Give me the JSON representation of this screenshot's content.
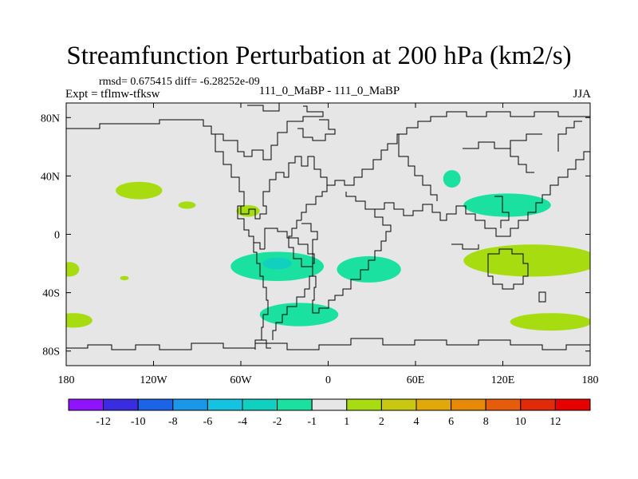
{
  "chart_data": {
    "type": "heatmap",
    "title": "Streamfunction Perturbation at 200 hPa (km2/s)",
    "stats_label": "rmsd= 0.675415 diff= -6.28252e-09",
    "experiment_label": "Expt = tflmw-tfksw",
    "comparison_label": "111_0_MaBP - 111_0_MaBP",
    "season_label": "JJA",
    "x_range": [
      -180,
      180
    ],
    "y_range": [
      -90,
      90
    ],
    "x_ticks": [
      {
        "value": -180,
        "label": "180"
      },
      {
        "value": -120,
        "label": "120W"
      },
      {
        "value": -60,
        "label": "60W"
      },
      {
        "value": 0,
        "label": "0"
      },
      {
        "value": 60,
        "label": "60E"
      },
      {
        "value": 120,
        "label": "120E"
      },
      {
        "value": 180,
        "label": "180"
      }
    ],
    "y_ticks": [
      {
        "value": 80,
        "label": "80N"
      },
      {
        "value": 40,
        "label": "40N"
      },
      {
        "value": 0,
        "label": "0"
      },
      {
        "value": -40,
        "label": "40S"
      },
      {
        "value": -80,
        "label": "80S"
      }
    ],
    "background_color": "#e6e6e6",
    "levels": [
      {
        "label": "-12",
        "color": "#9013fe"
      },
      {
        "label": "-10",
        "color": "#3a2ce0"
      },
      {
        "label": "-8",
        "color": "#1c63e6"
      },
      {
        "label": "-6",
        "color": "#1a97e8"
      },
      {
        "label": "-4",
        "color": "#14c3e0"
      },
      {
        "label": "-2",
        "color": "#10d0c0"
      },
      {
        "label": "-1",
        "color": "#1ae0a0"
      },
      {
        "label": "1",
        "color": "#e6e6e6"
      },
      {
        "label": "2",
        "color": "#a6dc10"
      },
      {
        "label": "4",
        "color": "#c8c810"
      },
      {
        "label": "6",
        "color": "#e0a808"
      },
      {
        "label": "8",
        "color": "#e68a08"
      },
      {
        "label": "10",
        "color": "#e65c0a"
      },
      {
        "label": "12",
        "color": "#e02a0a"
      },
      {
        "label": "",
        "color": "#e60000"
      }
    ],
    "blobs": [
      {
        "lon": -130,
        "lat": 30,
        "rlon": 16,
        "rlat": 6,
        "level": "2",
        "color": "#a6dc10"
      },
      {
        "lon": -97,
        "lat": 20,
        "rlon": 6,
        "rlat": 2.5,
        "level": "2",
        "color": "#a6dc10"
      },
      {
        "lon": -55,
        "lat": 16,
        "rlon": 8,
        "rlat": 4,
        "level": "2",
        "color": "#a6dc10"
      },
      {
        "lon": -178,
        "lat": -24,
        "rlon": 7,
        "rlat": 5,
        "level": "2",
        "color": "#a6dc10"
      },
      {
        "lon": -140,
        "lat": -30,
        "rlon": 3,
        "rlat": 1.5,
        "level": "2",
        "color": "#a6dc10"
      },
      {
        "lon": -175,
        "lat": -59,
        "rlon": 13,
        "rlat": 5,
        "level": "2",
        "color": "#a6dc10"
      },
      {
        "lon": 85,
        "lat": 38,
        "rlon": 6,
        "rlat": 6,
        "level": "-1",
        "color": "#1ae0a0"
      },
      {
        "lon": 123,
        "lat": 20,
        "rlon": 30,
        "rlat": 8,
        "level": "-1",
        "color": "#1ae0a0"
      },
      {
        "lon": -35,
        "lat": -22,
        "rlon": 32,
        "rlat": 10,
        "level": "-1",
        "color": "#1ae0a0"
      },
      {
        "lon": 28,
        "lat": -24,
        "rlon": 22,
        "rlat": 9,
        "level": "-1",
        "color": "#1ae0a0"
      },
      {
        "lon": -35,
        "lat": -20,
        "rlon": 10,
        "rlat": 4,
        "level": "-2",
        "color": "#10d0c0"
      },
      {
        "lon": -20,
        "lat": -55,
        "rlon": 27,
        "rlat": 8,
        "level": "-1",
        "color": "#1ae0a0"
      },
      {
        "lon": 140,
        "lat": -18,
        "rlon": 47,
        "rlat": 11,
        "level": "2",
        "color": "#a6dc10"
      },
      {
        "lon": 153,
        "lat": -60,
        "rlon": 28,
        "rlat": 6,
        "level": "2",
        "color": "#a6dc10"
      }
    ]
  }
}
